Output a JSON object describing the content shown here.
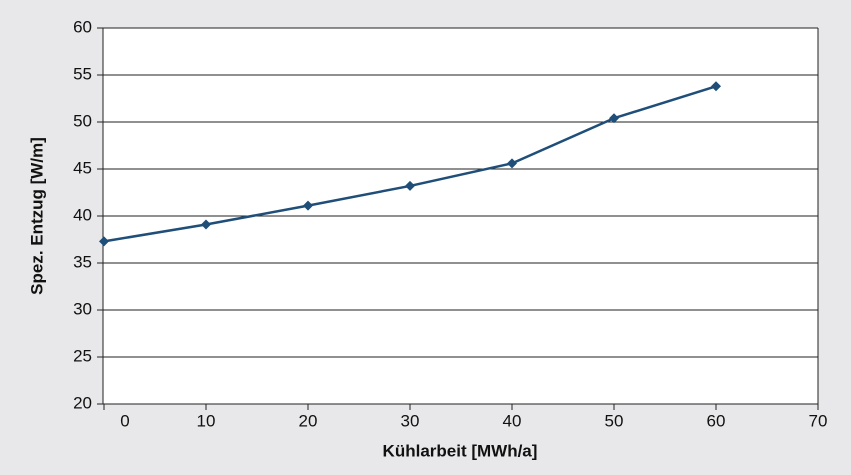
{
  "chart_data": {
    "type": "line",
    "x_label": "Kühlarbeit [MWh/a]",
    "y_label": "Spez. Entzug [W/m]",
    "x": [
      0,
      10,
      20,
      30,
      40,
      50,
      60
    ],
    "series": [
      {
        "name": "Spez. Entzug",
        "color": "#1f4e79",
        "values": [
          37.3,
          39.1,
          41.1,
          43.2,
          45.6,
          50.4,
          53.8
        ]
      }
    ],
    "xlim": [
      0,
      70
    ],
    "xticks": [
      0,
      10,
      20,
      30,
      40,
      50,
      60,
      70
    ],
    "ylim": [
      20,
      60
    ],
    "yticks": [
      20,
      25,
      30,
      35,
      40,
      45,
      50,
      55,
      60
    ],
    "grid": true
  }
}
